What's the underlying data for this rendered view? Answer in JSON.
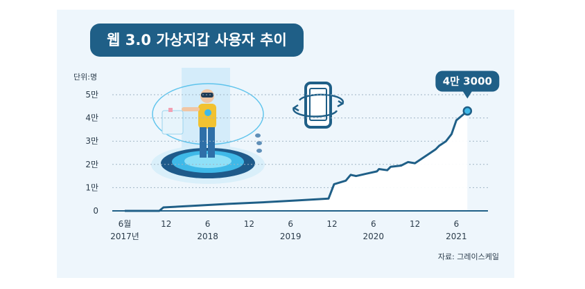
{
  "colors": {
    "title_bg": "#1f5f87",
    "line": "#1f5f87",
    "card_bg": "#eef6fc",
    "fill": "#ffffff",
    "accent": "#3fb9e8"
  },
  "chart_data": {
    "type": "area",
    "title": "웹 3.0 가상지갑 사용자 추이",
    "unit_label": "단위:명",
    "yticks": [
      "0",
      "1만",
      "2만",
      "3만",
      "4만",
      "5만"
    ],
    "ytick_values": [
      0,
      10000,
      20000,
      30000,
      40000,
      50000
    ],
    "ylim": [
      0,
      50000
    ],
    "xticks": [
      {
        "label": "6월",
        "sub": "2017년",
        "t": 0
      },
      {
        "label": "12",
        "sub": "",
        "t": 6
      },
      {
        "label": "6",
        "sub": "2018",
        "t": 12
      },
      {
        "label": "12",
        "sub": "",
        "t": 18
      },
      {
        "label": "6",
        "sub": "2019",
        "t": 24
      },
      {
        "label": "12",
        "sub": "",
        "t": 30
      },
      {
        "label": "6",
        "sub": "2020",
        "t": 36
      },
      {
        "label": "12",
        "sub": "",
        "t": 42
      },
      {
        "label": "6",
        "sub": "2021",
        "t": 48
      }
    ],
    "xlim": [
      0,
      52
    ],
    "series": [
      {
        "values": [
          [
            0,
            0
          ],
          [
            5,
            0
          ],
          [
            5.6,
            1500
          ],
          [
            10,
            2200
          ],
          [
            15,
            3000
          ],
          [
            20,
            3700
          ],
          [
            25,
            4500
          ],
          [
            29.5,
            5300
          ],
          [
            30.3,
            11500
          ],
          [
            32,
            13000
          ],
          [
            32.7,
            15500
          ],
          [
            33.5,
            15000
          ],
          [
            35,
            16000
          ],
          [
            36.5,
            17000
          ],
          [
            36.8,
            18000
          ],
          [
            38,
            17500
          ],
          [
            38.5,
            19000
          ],
          [
            40,
            19500
          ],
          [
            41,
            21000
          ],
          [
            42,
            20500
          ],
          [
            43,
            22500
          ],
          [
            44,
            24500
          ],
          [
            45,
            26500
          ],
          [
            45.5,
            28000
          ],
          [
            46.5,
            30000
          ],
          [
            47.3,
            33000
          ],
          [
            48,
            39000
          ],
          [
            49,
            41500
          ],
          [
            49.6,
            43000
          ]
        ]
      }
    ],
    "callout": {
      "label": "4만 3000",
      "x": 49.6,
      "y": 43000
    },
    "source": "자료: 그레이스케일",
    "grid": true
  }
}
